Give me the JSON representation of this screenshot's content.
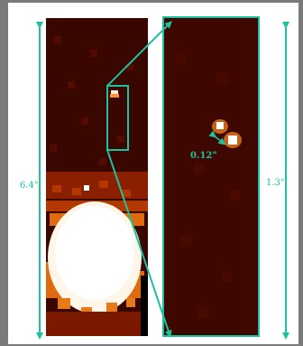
{
  "annotations": {
    "left_scale": "6.4\"",
    "right_scale": "1.3\"",
    "separation": "0.12\""
  },
  "colors": {
    "annotation": "#1fc0a0",
    "background": "#7a7a7a",
    "frame": "#ffffff"
  },
  "panels": [
    {
      "name": "wide-field-image",
      "description_key": "left"
    },
    {
      "name": "zoom-image",
      "description_key": "right"
    }
  ]
}
